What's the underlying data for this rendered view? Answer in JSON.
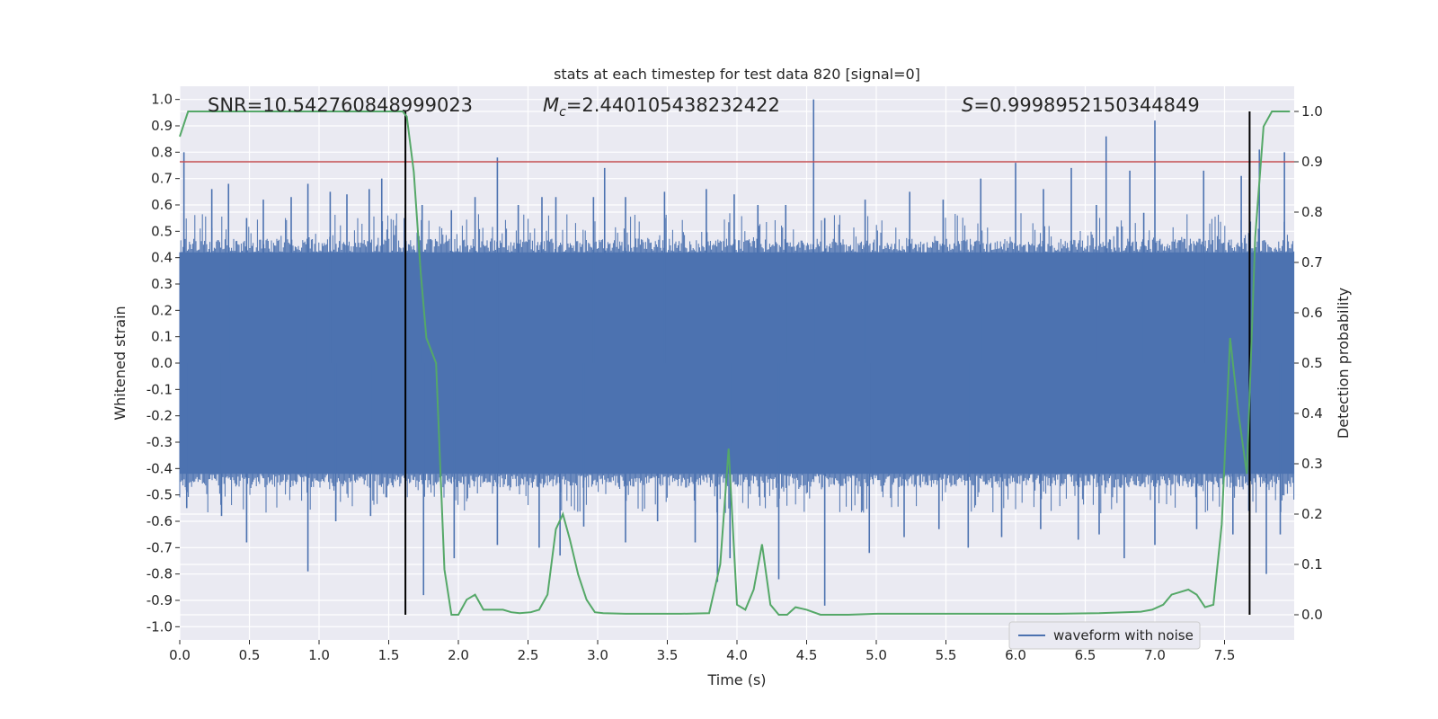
{
  "chart_data": {
    "type": "line",
    "title": "stats at each timestep for test data 820 [signal=0]",
    "xlabel": "Time (s)",
    "ylabel": "Whitened strain",
    "y2label": "Detection probability",
    "xlim": [
      0,
      8
    ],
    "ylim": [
      -1.05,
      1.05
    ],
    "y2lim": [
      -0.05,
      1.05
    ],
    "x_ticks": [
      "0.0",
      "0.5",
      "1.0",
      "1.5",
      "2.0",
      "2.5",
      "3.0",
      "3.5",
      "4.0",
      "4.5",
      "5.0",
      "5.5",
      "6.0",
      "6.5",
      "7.0",
      "7.5"
    ],
    "y_ticks": [
      "1.0",
      "0.9",
      "0.8",
      "0.7",
      "0.6",
      "0.5",
      "0.4",
      "0.3",
      "0.2",
      "0.1",
      "0.0",
      "-0.1",
      "-0.2",
      "-0.3",
      "-0.4",
      "-0.5",
      "-0.6",
      "-0.7",
      "-0.8",
      "-0.9",
      "-1.0"
    ],
    "y2_ticks": [
      "1.0",
      "0.9",
      "0.8",
      "0.7",
      "0.6",
      "0.5",
      "0.4",
      "0.3",
      "0.2",
      "0.1",
      "0.0"
    ],
    "grid": true,
    "legend_position": "bottom-right",
    "annotations": {
      "snr": "SNR=10.542760848999023",
      "mc_symbol": "M",
      "mc_subscript": "c",
      "mc_value": "=2.440105438232422",
      "s_symbol": "S",
      "s_value": "=0.9998952150344849"
    },
    "threshold": {
      "axis": "y2",
      "value": 0.9,
      "color": "#c44e52"
    },
    "vertical_markers": {
      "x": [
        1.62,
        7.68
      ],
      "color": "#000000"
    },
    "series": [
      {
        "name": "waveform with noise",
        "axis": "y",
        "color": "#4c72b0",
        "description_free": true,
        "envelope_pos": 0.42,
        "envelope_neg": -0.42,
        "spikes": [
          [
            0.03,
            0.8
          ],
          [
            0.23,
            0.66
          ],
          [
            0.35,
            0.68
          ],
          [
            0.48,
            0.55
          ],
          [
            0.6,
            0.62
          ],
          [
            0.8,
            0.63
          ],
          [
            0.92,
            0.68
          ],
          [
            1.08,
            0.65
          ],
          [
            1.2,
            0.64
          ],
          [
            1.36,
            0.66
          ],
          [
            1.45,
            0.7
          ],
          [
            1.62,
            0.6
          ],
          [
            1.74,
            0.6
          ],
          [
            1.95,
            0.58
          ],
          [
            2.12,
            0.63
          ],
          [
            2.28,
            0.78
          ],
          [
            2.43,
            0.6
          ],
          [
            2.6,
            0.63
          ],
          [
            2.7,
            0.63
          ],
          [
            2.97,
            0.63
          ],
          [
            3.05,
            0.74
          ],
          [
            3.2,
            0.63
          ],
          [
            3.48,
            0.65
          ],
          [
            3.78,
            0.66
          ],
          [
            3.98,
            0.64
          ],
          [
            4.15,
            0.6
          ],
          [
            4.35,
            0.6
          ],
          [
            4.55,
            1.0
          ],
          [
            4.63,
            0.55
          ],
          [
            4.92,
            0.62
          ],
          [
            5.24,
            0.65
          ],
          [
            5.48,
            0.62
          ],
          [
            5.75,
            0.7
          ],
          [
            6.0,
            0.76
          ],
          [
            6.2,
            0.66
          ],
          [
            6.4,
            0.74
          ],
          [
            6.58,
            0.6
          ],
          [
            6.65,
            0.86
          ],
          [
            6.82,
            0.73
          ],
          [
            6.92,
            0.57
          ],
          [
            7.0,
            0.92
          ],
          [
            7.35,
            0.73
          ],
          [
            7.62,
            0.71
          ],
          [
            7.75,
            0.81
          ],
          [
            7.93,
            0.8
          ],
          [
            0.05,
            -0.55
          ],
          [
            0.3,
            -0.58
          ],
          [
            0.48,
            -0.68
          ],
          [
            0.92,
            -0.79
          ],
          [
            1.12,
            -0.6
          ],
          [
            1.37,
            -0.58
          ],
          [
            1.62,
            -0.63
          ],
          [
            1.75,
            -0.88
          ],
          [
            1.97,
            -0.74
          ],
          [
            2.28,
            -0.69
          ],
          [
            2.58,
            -0.7
          ],
          [
            2.73,
            -0.73
          ],
          [
            2.9,
            -0.62
          ],
          [
            3.2,
            -0.68
          ],
          [
            3.43,
            -0.6
          ],
          [
            3.7,
            -0.68
          ],
          [
            3.86,
            -0.83
          ],
          [
            3.95,
            -0.74
          ],
          [
            4.3,
            -0.82
          ],
          [
            4.63,
            -0.92
          ],
          [
            4.95,
            -0.72
          ],
          [
            5.2,
            -0.66
          ],
          [
            5.45,
            -0.63
          ],
          [
            5.66,
            -0.7
          ],
          [
            5.9,
            -0.66
          ],
          [
            6.18,
            -0.63
          ],
          [
            6.45,
            -0.67
          ],
          [
            6.6,
            -0.65
          ],
          [
            6.78,
            -0.74
          ],
          [
            7.0,
            -0.69
          ],
          [
            7.3,
            -0.63
          ],
          [
            7.56,
            -0.65
          ],
          [
            7.68,
            -0.75
          ],
          [
            7.8,
            -0.8
          ],
          [
            7.9,
            -0.65
          ]
        ]
      },
      {
        "name": "detection probability",
        "axis": "y2",
        "color": "#55a868",
        "x": [
          0.0,
          0.06,
          0.2,
          0.6,
          1.0,
          1.2,
          1.4,
          1.6,
          1.63,
          1.68,
          1.73,
          1.77,
          1.84,
          1.9,
          1.95,
          2.0,
          2.06,
          2.12,
          2.18,
          2.25,
          2.32,
          2.38,
          2.44,
          2.52,
          2.58,
          2.64,
          2.7,
          2.75,
          2.8,
          2.86,
          2.92,
          2.98,
          3.04,
          3.2,
          3.4,
          3.6,
          3.8,
          3.88,
          3.94,
          4.0,
          4.06,
          4.12,
          4.18,
          4.24,
          4.3,
          4.36,
          4.42,
          4.5,
          4.6,
          4.8,
          5.0,
          5.2,
          5.5,
          5.8,
          6.0,
          6.3,
          6.6,
          6.9,
          6.98,
          7.06,
          7.12,
          7.18,
          7.24,
          7.3,
          7.36,
          7.42,
          7.48,
          7.54,
          7.6,
          7.66,
          7.72,
          7.78,
          7.84,
          7.9,
          7.97
        ],
        "values": [
          0.95,
          1.0,
          1.0,
          1.0,
          1.0,
          1.0,
          1.0,
          1.0,
          0.99,
          0.88,
          0.68,
          0.55,
          0.5,
          0.09,
          0.0,
          0.0,
          0.03,
          0.04,
          0.01,
          0.01,
          0.01,
          0.005,
          0.003,
          0.005,
          0.01,
          0.04,
          0.17,
          0.2,
          0.15,
          0.08,
          0.03,
          0.005,
          0.003,
          0.002,
          0.002,
          0.002,
          0.003,
          0.1,
          0.33,
          0.02,
          0.01,
          0.05,
          0.14,
          0.02,
          0.0,
          0.0,
          0.015,
          0.01,
          0.0,
          0.0,
          0.002,
          0.002,
          0.002,
          0.002,
          0.002,
          0.002,
          0.003,
          0.006,
          0.01,
          0.02,
          0.04,
          0.045,
          0.05,
          0.04,
          0.015,
          0.02,
          0.18,
          0.55,
          0.4,
          0.28,
          0.75,
          0.97,
          1.0,
          1.0,
          1.0
        ]
      }
    ]
  }
}
